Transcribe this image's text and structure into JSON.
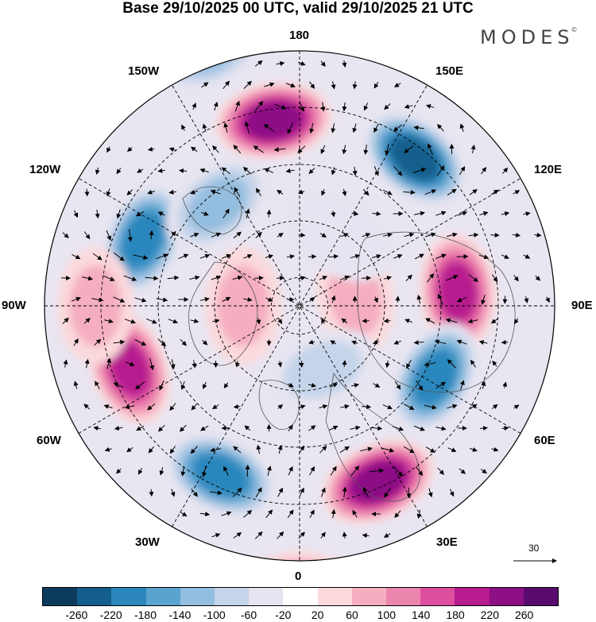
{
  "title": "Base 29/10/2025 00 UTC, valid 29/10/2025 21 UTC",
  "brand": "MODES",
  "brand_mark": "©",
  "longitude_labels": {
    "lon_180": "180",
    "lon_150w": "150W",
    "lon_150e": "150E",
    "lon_120w": "120W",
    "lon_120e": "120E",
    "lon_90w": "90W",
    "lon_90e": "90E",
    "lon_60w": "60W",
    "lon_60e": "60E",
    "lon_30w": "30W",
    "lon_30e": "30E",
    "lon_0": "0"
  },
  "wind_scale_label": "30",
  "colorbar": {
    "colors": [
      "#0d3b5c",
      "#135e8d",
      "#2c87bd",
      "#5aa3cf",
      "#94bedf",
      "#c5d4ea",
      "#e6e4f0",
      "#ffffff",
      "#fbd9dc",
      "#f5aec0",
      "#ec85ae",
      "#de4f9f",
      "#b71b8f",
      "#8c0f85",
      "#5a0a6e"
    ],
    "ticks": [
      "-260",
      "-220",
      "-180",
      "-140",
      "-100",
      "-60",
      "-20",
      "20",
      "60",
      "100",
      "140",
      "180",
      "220",
      "260"
    ]
  },
  "anomaly_centres": [
    {
      "lon_deg": 188,
      "colat_deg": 33,
      "value": 230
    },
    {
      "lon_deg": 142,
      "colat_deg": 33,
      "value": -220
    },
    {
      "lon_deg": 95,
      "colat_deg": 28,
      "value": 200
    },
    {
      "lon_deg": 62,
      "colat_deg": 27,
      "value": -200
    },
    {
      "lon_deg": 24,
      "colat_deg": 34,
      "value": 220
    },
    {
      "lon_deg": 335,
      "colat_deg": 33,
      "value": -200
    },
    {
      "lon_deg": 290,
      "colat_deg": 32,
      "value": 200
    },
    {
      "lon_deg": 247,
      "colat_deg": 30,
      "value": -190
    },
    {
      "lon_deg": 219,
      "colat_deg": 23,
      "value": -130
    },
    {
      "lon_deg": 100,
      "colat_deg": 10,
      "value": 80
    },
    {
      "lon_deg": 20,
      "colat_deg": 12,
      "value": -60
    },
    {
      "lon_deg": 270,
      "colat_deg": 10,
      "value": 60
    },
    {
      "lon_deg": 150,
      "colat_deg": 14,
      "value": -50
    },
    {
      "lon_deg": 270,
      "colat_deg": 36,
      "value": 70
    },
    {
      "lon_deg": 200,
      "colat_deg": 48,
      "value": -100
    },
    {
      "lon_deg": 0,
      "colat_deg": 50,
      "value": 130
    }
  ]
}
